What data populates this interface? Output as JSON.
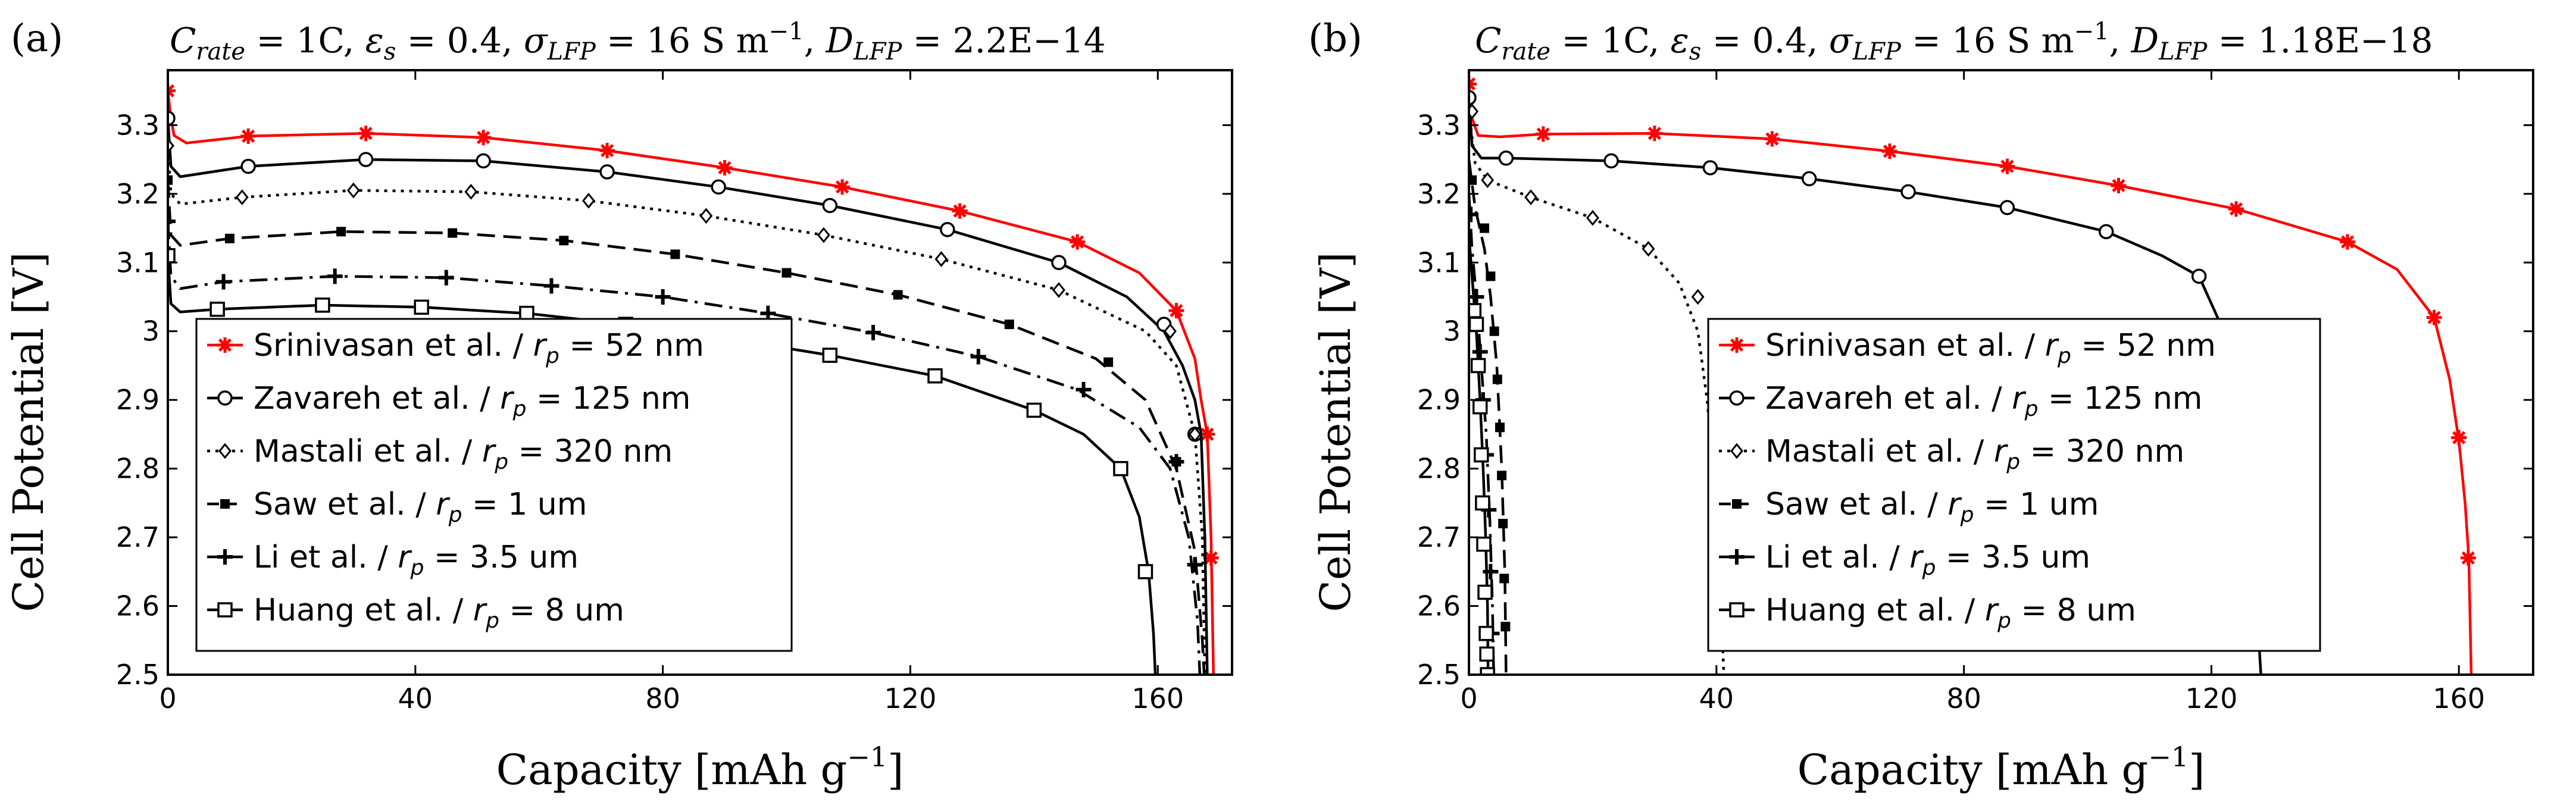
{
  "chart_data": [
    {
      "type": "line",
      "panel_label": "(a)",
      "title": "C_rate = 1C, ε_s = 0.4, σ_LFP = 16 S m⁻¹, D_LFP = 2.2E−14",
      "title_parts": {
        "c_var": "C",
        "c_sub": "rate",
        "c_val": " = 1C, ",
        "e_var": "ε",
        "e_sub": "s",
        "e_val": " = 0.4, ",
        "s_var": "σ",
        "s_sub": "LFP",
        "s_val": " = 16 S m",
        "s_sup": "−1",
        "s_sep": ", ",
        "d_var": "D",
        "d_sub": "LFP",
        "d_val": " = 2.2E−14"
      },
      "xlabel": "Capacity [mAh g⁻¹]",
      "xlabel_parts": {
        "main": "Capacity [mAh g",
        "sup": "−1",
        "end": "]"
      },
      "ylabel": "Cell Potential [V]",
      "xlim": [
        0,
        172
      ],
      "ylim": [
        2.5,
        3.38
      ],
      "xticks": [
        0,
        40,
        80,
        120,
        160
      ],
      "xtick_labels": [
        "0",
        "40",
        "80",
        "120",
        "160"
      ],
      "yticks": [
        2.5,
        2.6,
        2.7,
        2.8,
        2.9,
        3.0,
        3.1,
        3.2,
        3.3
      ],
      "ytick_labels": [
        "2.5",
        "2.6",
        "2.7",
        "2.8",
        "2.9",
        "3",
        "3.1",
        "3.2",
        "3.3"
      ],
      "grid": false,
      "legend_position": "lower-left",
      "series": [
        {
          "name": "Srinivasan et al. / r_p = 52 nm",
          "legend_prefix": "Srinivasan et al. / ",
          "legend_var": "r",
          "legend_sub": "p",
          "legend_suffix": " = 52 nm",
          "color": "#ff0000",
          "dash": "solid",
          "marker": "star",
          "x": [
            0,
            0.5,
            1,
            3,
            13,
            32,
            51,
            71,
            90,
            109,
            128,
            147,
            157,
            163,
            166,
            167,
            168,
            168.6,
            169
          ],
          "y": [
            3.35,
            3.31,
            3.285,
            3.274,
            3.284,
            3.288,
            3.282,
            3.263,
            3.238,
            3.21,
            3.175,
            3.13,
            3.085,
            3.03,
            2.96,
            2.9,
            2.85,
            2.7,
            2.5
          ],
          "marker_x": [
            0,
            13,
            32,
            51,
            71,
            90,
            109,
            128,
            147,
            163,
            168,
            168.6
          ],
          "marker_y": [
            3.35,
            3.284,
            3.288,
            3.282,
            3.263,
            3.238,
            3.21,
            3.175,
            3.13,
            3.03,
            2.85,
            2.67
          ]
        },
        {
          "name": "Zavareh et al. / r_p = 125 nm",
          "legend_prefix": "Zavareh et al. / ",
          "legend_var": "r",
          "legend_sub": "p",
          "legend_suffix": " = 125 nm",
          "color": "#000000",
          "dash": "solid",
          "marker": "circle",
          "x": [
            0,
            0.5,
            2,
            13,
            32,
            51,
            71,
            89,
            107,
            126,
            144,
            155,
            161,
            164,
            166,
            167,
            167.6,
            168
          ],
          "y": [
            3.31,
            3.24,
            3.225,
            3.24,
            3.25,
            3.248,
            3.232,
            3.21,
            3.183,
            3.148,
            3.1,
            3.05,
            3.0,
            2.95,
            2.9,
            2.85,
            2.7,
            2.5
          ],
          "marker_x": [
            0,
            13,
            32,
            51,
            71,
            89,
            107,
            126,
            144,
            161,
            166
          ],
          "marker_y": [
            3.31,
            3.24,
            3.25,
            3.248,
            3.232,
            3.21,
            3.183,
            3.148,
            3.1,
            3.01,
            2.85
          ]
        },
        {
          "name": "Mastali et al. / r_p = 320 nm",
          "legend_prefix": "Mastali et al. / ",
          "legend_var": "r",
          "legend_sub": "p",
          "legend_suffix": " = 320 nm",
          "color": "#000000",
          "dash": "dotted",
          "marker": "diamond",
          "x": [
            0,
            0.5,
            2,
            12,
            30,
            49,
            68,
            87,
            106,
            125,
            144,
            158,
            163,
            166,
            167.2,
            167.6
          ],
          "y": [
            3.27,
            3.2,
            3.185,
            3.195,
            3.205,
            3.203,
            3.19,
            3.168,
            3.14,
            3.105,
            3.06,
            3.0,
            2.95,
            2.85,
            2.7,
            2.5
          ],
          "marker_x": [
            0,
            12,
            30,
            49,
            68,
            87,
            106,
            125,
            144,
            162,
            166
          ],
          "marker_y": [
            3.27,
            3.195,
            3.205,
            3.203,
            3.19,
            3.168,
            3.14,
            3.105,
            3.06,
            3.0,
            2.85
          ]
        },
        {
          "name": "Saw et al. / r_p = 1 um",
          "legend_prefix": "Saw et al. / ",
          "legend_var": "r",
          "legend_sub": "p",
          "legend_suffix": " = 1 um",
          "color": "#000000",
          "dash": "dashed",
          "marker": "square-filled",
          "x": [
            0,
            0.5,
            2,
            10,
            28,
            46,
            64,
            82,
            100,
            118,
            136,
            150,
            158,
            163,
            166,
            167.2,
            167.5
          ],
          "y": [
            3.22,
            3.14,
            3.125,
            3.135,
            3.145,
            3.143,
            3.132,
            3.112,
            3.085,
            3.053,
            3.01,
            2.96,
            2.9,
            2.8,
            2.68,
            2.55,
            2.5
          ],
          "marker_x": [
            0,
            10,
            28,
            46,
            64,
            82,
            100,
            118,
            136,
            152,
            163
          ],
          "marker_y": [
            3.22,
            3.135,
            3.145,
            3.143,
            3.132,
            3.112,
            3.085,
            3.053,
            3.01,
            2.955,
            2.81
          ]
        },
        {
          "name": "Li et al. / r_p = 3.5 um",
          "legend_prefix": "Li et al. / ",
          "legend_var": "r",
          "legend_sub": "p",
          "legend_suffix": " = 3.5 um",
          "color": "#000000",
          "dash": "dashdot",
          "marker": "plus",
          "x": [
            0,
            0.5,
            2,
            9,
            27,
            45,
            62,
            80,
            97,
            114,
            131,
            147,
            157,
            162,
            165,
            166.4,
            166.8
          ],
          "y": [
            3.16,
            3.08,
            3.062,
            3.072,
            3.08,
            3.078,
            3.066,
            3.05,
            3.026,
            2.998,
            2.963,
            2.915,
            2.86,
            2.8,
            2.7,
            2.58,
            2.5
          ],
          "marker_x": [
            0,
            9,
            27,
            45,
            62,
            80,
            97,
            114,
            131,
            148,
            163,
            166
          ],
          "marker_y": [
            3.16,
            3.072,
            3.08,
            3.078,
            3.066,
            3.05,
            3.026,
            2.998,
            2.963,
            2.915,
            2.81,
            2.66
          ]
        },
        {
          "name": "Huang et al. / r_p = 8 um",
          "legend_prefix": "Huang et al. / ",
          "legend_var": "r",
          "legend_sub": "p",
          "legend_suffix": " = 8 um",
          "color": "#000000",
          "dash": "solid",
          "marker": "square",
          "x": [
            0,
            0.5,
            2,
            8,
            25,
            41,
            58,
            74,
            90,
            107,
            124,
            140,
            148,
            154,
            157,
            158.5,
            159.3,
            159.6
          ],
          "y": [
            3.11,
            3.04,
            3.028,
            3.032,
            3.038,
            3.035,
            3.026,
            3.01,
            2.99,
            2.965,
            2.935,
            2.885,
            2.85,
            2.8,
            2.73,
            2.65,
            2.56,
            2.5
          ],
          "marker_x": [
            0,
            8,
            25,
            41,
            58,
            74,
            90,
            107,
            124,
            140,
            154,
            158
          ],
          "marker_y": [
            3.11,
            3.032,
            3.038,
            3.035,
            3.026,
            3.01,
            2.99,
            2.965,
            2.935,
            2.885,
            2.8,
            2.65
          ]
        }
      ]
    },
    {
      "type": "line",
      "panel_label": "(b)",
      "title": "C_rate = 1C, ε_s = 0.4, σ_LFP = 16 S m⁻¹, D_LFP = 1.18E−18",
      "title_parts": {
        "c_var": "C",
        "c_sub": "rate",
        "c_val": " = 1C, ",
        "e_var": "ε",
        "e_sub": "s",
        "e_val": " = 0.4, ",
        "s_var": "σ",
        "s_sub": "LFP",
        "s_val": " = 16 S m",
        "s_sup": "−1",
        "s_sep": ", ",
        "d_var": "D",
        "d_sub": "LFP",
        "d_val": " = 1.18E−18"
      },
      "xlabel": "Capacity [mAh g⁻¹]",
      "xlabel_parts": {
        "main": "Capacity [mAh g",
        "sup": "−1",
        "end": "]"
      },
      "ylabel": "Cell Potential [V]",
      "xlim": [
        0,
        172
      ],
      "ylim": [
        2.5,
        3.38
      ],
      "xticks": [
        0,
        40,
        80,
        120,
        160
      ],
      "xtick_labels": [
        "0",
        "40",
        "80",
        "120",
        "160"
      ],
      "yticks": [
        2.5,
        2.6,
        2.7,
        2.8,
        2.9,
        3.0,
        3.1,
        3.2,
        3.3
      ],
      "ytick_labels": [
        "2.5",
        "2.6",
        "2.7",
        "2.8",
        "2.9",
        "3",
        "3.1",
        "3.2",
        "3.3"
      ],
      "grid": false,
      "legend_position": "center",
      "series": [
        {
          "name": "Srinivasan et al. / r_p = 52 nm",
          "legend_prefix": "Srinivasan et al. / ",
          "legend_var": "r",
          "legend_sub": "p",
          "legend_suffix": " = 52 nm",
          "color": "#ff0000",
          "dash": "solid",
          "marker": "star",
          "x": [
            0,
            0.5,
            1.5,
            5,
            12,
            30,
            49,
            68,
            87,
            105,
            124,
            142,
            150,
            156,
            158.5,
            160,
            161,
            161.6,
            162
          ],
          "y": [
            3.36,
            3.31,
            3.285,
            3.283,
            3.287,
            3.288,
            3.28,
            3.262,
            3.24,
            3.212,
            3.178,
            3.13,
            3.09,
            3.02,
            2.93,
            2.84,
            2.75,
            2.67,
            2.5
          ],
          "marker_x": [
            0,
            12,
            30,
            49,
            68,
            87,
            105,
            124,
            142,
            156,
            160,
            161.5
          ],
          "marker_y": [
            3.36,
            3.287,
            3.288,
            3.28,
            3.262,
            3.24,
            3.212,
            3.178,
            3.13,
            3.02,
            2.845,
            2.67
          ]
        },
        {
          "name": "Zavareh et al. / r_p = 125 nm",
          "legend_prefix": "Zavareh et al. / ",
          "legend_var": "r",
          "legend_sub": "p",
          "legend_suffix": " = 125 nm",
          "color": "#000000",
          "dash": "solid",
          "marker": "circle",
          "x": [
            0,
            0.5,
            2,
            6,
            23,
            39,
            55,
            71,
            87,
            103,
            112,
            118,
            122,
            125,
            127,
            128
          ],
          "y": [
            3.34,
            3.27,
            3.252,
            3.252,
            3.248,
            3.238,
            3.222,
            3.203,
            3.18,
            3.145,
            3.11,
            3.08,
            3.0,
            2.85,
            2.65,
            2.5
          ],
          "marker_x": [
            0,
            6,
            23,
            39,
            55,
            71,
            87,
            103,
            118
          ],
          "marker_y": [
            3.34,
            3.252,
            3.248,
            3.238,
            3.222,
            3.203,
            3.18,
            3.145,
            3.08
          ]
        },
        {
          "name": "Mastali et al. / r_p = 320 nm",
          "legend_prefix": "Mastali et al. / ",
          "legend_var": "r",
          "legend_sub": "p",
          "legend_suffix": " = 320 nm",
          "color": "#000000",
          "dash": "dotted",
          "marker": "diamond",
          "x": [
            0,
            1,
            3,
            10,
            20,
            29,
            34,
            37,
            38.5,
            39.5,
            40.5,
            41.2
          ],
          "y": [
            3.32,
            3.245,
            3.22,
            3.195,
            3.165,
            3.12,
            3.07,
            3.0,
            2.9,
            2.8,
            2.65,
            2.5
          ],
          "marker_x": [
            0.5,
            3,
            10,
            20,
            29,
            37
          ],
          "marker_y": [
            3.32,
            3.22,
            3.195,
            3.165,
            3.12,
            3.05
          ]
        },
        {
          "name": "Saw et al. / r_p = 1 um",
          "legend_prefix": "Saw et al. / ",
          "legend_var": "r",
          "legend_sub": "p",
          "legend_suffix": " = 1 um",
          "color": "#000000",
          "dash": "dashed",
          "marker": "square-filled",
          "x": [
            0,
            1,
            2.5,
            3.5,
            4.5,
            5.3,
            5.8,
            6.0
          ],
          "y": [
            3.25,
            3.18,
            3.12,
            3.05,
            2.95,
            2.8,
            2.65,
            2.5
          ],
          "marker_x": [
            0.5,
            2.5,
            3.5,
            4.1,
            4.6,
            5.0,
            5.3,
            5.5,
            5.7,
            5.9
          ],
          "marker_y": [
            3.22,
            3.15,
            3.08,
            3.0,
            2.93,
            2.86,
            2.79,
            2.72,
            2.64,
            2.57
          ]
        },
        {
          "name": "Li et al. / r_p = 3.5 um",
          "legend_prefix": "Li et al. / ",
          "legend_var": "r",
          "legend_sub": "p",
          "legend_suffix": " = 3.5 um",
          "color": "#000000",
          "dash": "dashdot",
          "marker": "plus",
          "x": [
            0,
            0.5,
            1.2,
            2.0,
            2.8,
            3.4,
            3.8,
            4.0
          ],
          "y": [
            3.2,
            3.12,
            3.05,
            2.95,
            2.85,
            2.72,
            2.6,
            2.5
          ],
          "marker_x": [
            0.3,
            1.2,
            1.8,
            2.3,
            2.8,
            3.2,
            3.5,
            3.7
          ],
          "marker_y": [
            3.17,
            3.05,
            2.97,
            2.9,
            2.82,
            2.74,
            2.65,
            2.56
          ]
        },
        {
          "name": "Huang et al. / r_p = 8 um",
          "legend_prefix": "Huang et al. / ",
          "legend_var": "r",
          "legend_sub": "p",
          "legend_suffix": " = 8 um",
          "color": "#000000",
          "dash": "solid",
          "marker": "square",
          "x": [
            0,
            0.5,
            1.2,
            1.8,
            2.3,
            2.7,
            3.0,
            3.1
          ],
          "y": [
            3.14,
            3.08,
            3.0,
            2.9,
            2.8,
            2.7,
            2.6,
            2.5
          ],
          "marker_x": [
            0.8,
            1.2,
            1.5,
            1.8,
            2.0,
            2.2,
            2.4,
            2.6,
            2.8,
            2.9,
            3.0
          ],
          "marker_y": [
            3.03,
            3.01,
            2.95,
            2.89,
            2.82,
            2.75,
            2.69,
            2.62,
            2.56,
            2.53,
            2.5
          ]
        }
      ]
    }
  ]
}
